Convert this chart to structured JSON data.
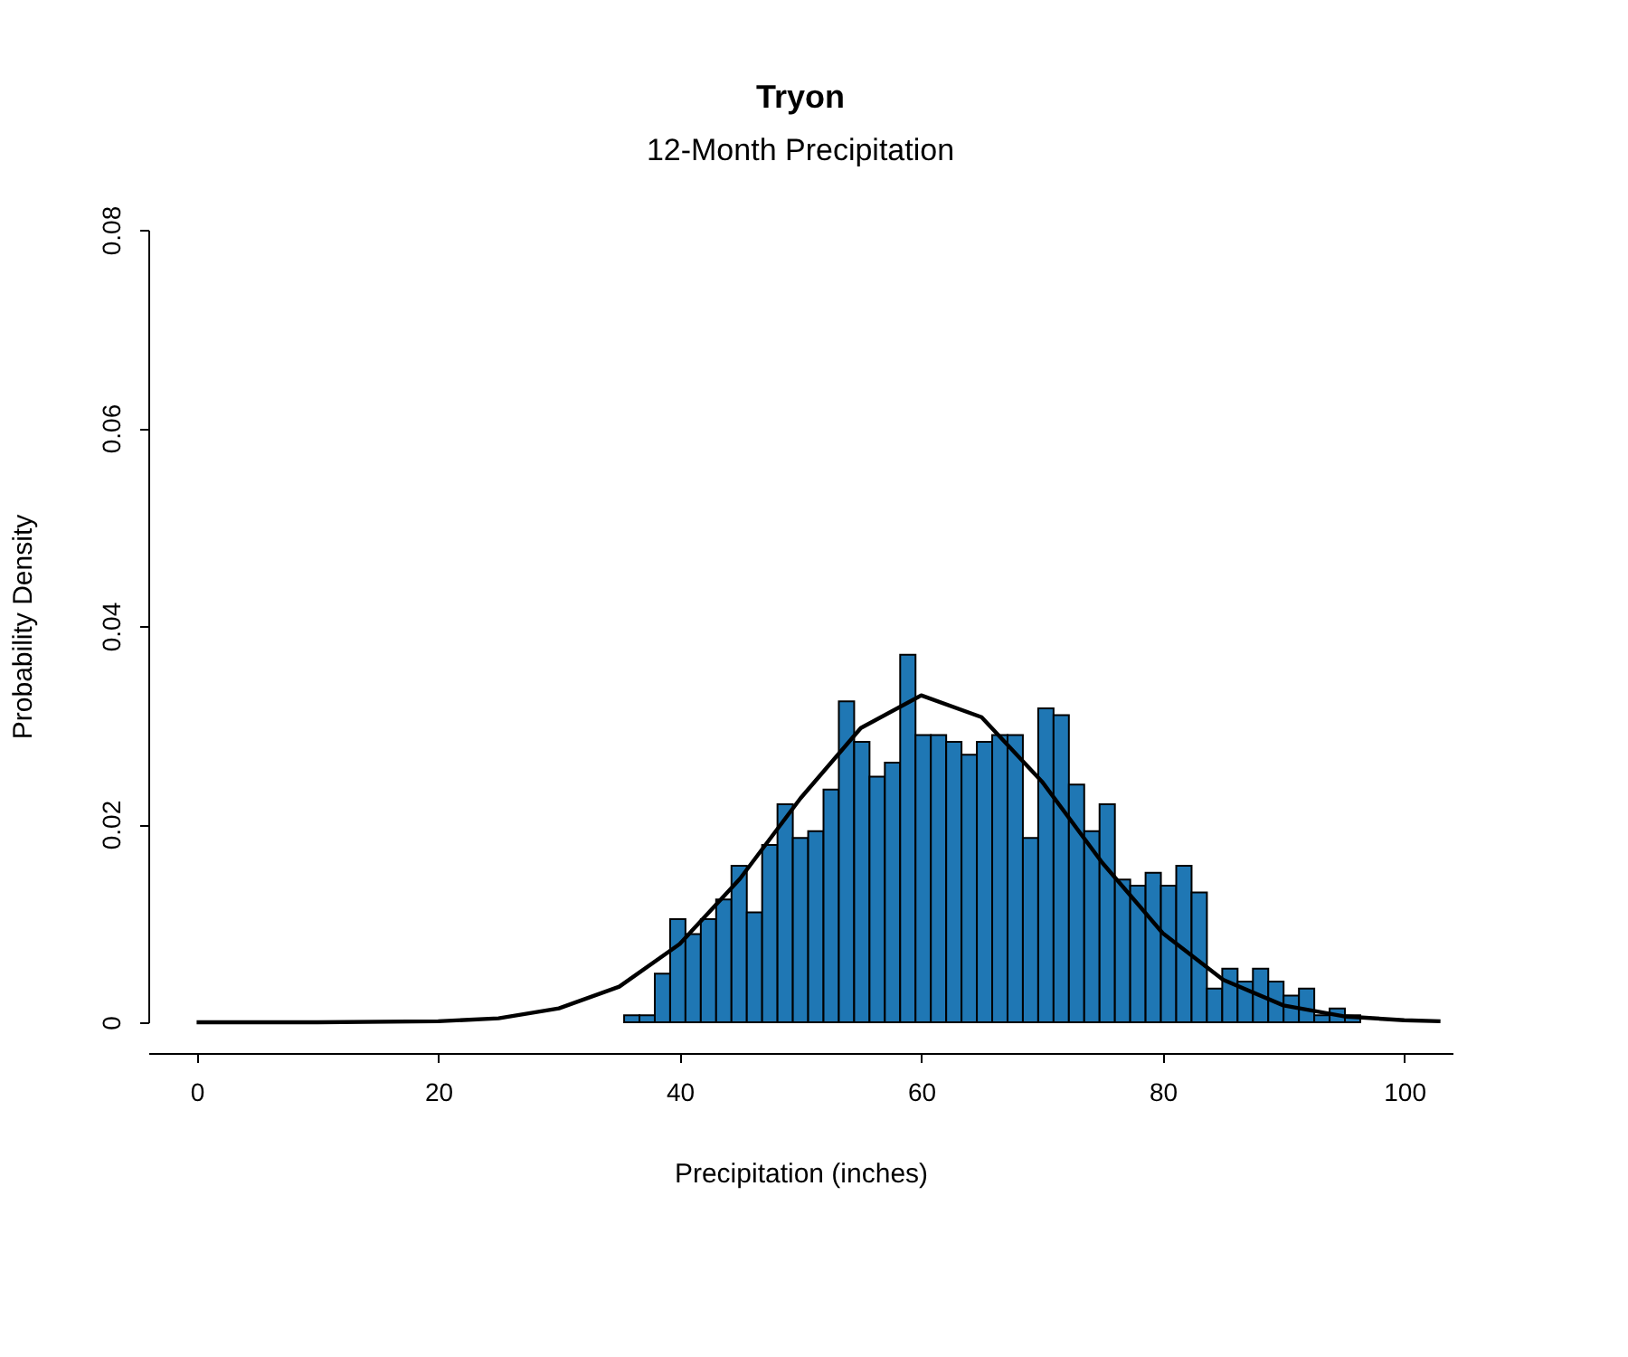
{
  "chart_data": {
    "type": "histogram",
    "title": "Tryon",
    "subtitle": "12-Month Precipitation",
    "xlabel": "Precipitation (inches)",
    "ylabel": "Probability Density",
    "xlim": [
      -4,
      104
    ],
    "xticks": [
      0,
      20,
      40,
      60,
      80,
      100
    ],
    "ylim": [
      0,
      0.08
    ],
    "yticks": [
      0,
      0.02,
      0.04,
      0.06,
      0.08
    ],
    "grid": false,
    "series": [
      {
        "type": "histogram",
        "color": "#1f77b4",
        "bins": [
          35.4,
          36.67,
          37.94,
          39.21,
          40.48,
          41.75,
          43.02,
          44.29,
          45.56,
          46.83,
          48.1,
          49.37,
          50.64,
          51.91,
          53.18,
          54.45,
          55.72,
          56.99,
          58.26,
          59.53,
          60.8,
          62.07,
          63.34,
          64.61,
          65.88,
          67.15,
          68.42,
          69.69,
          70.96,
          72.23,
          73.5,
          74.77,
          76.04,
          77.31,
          78.58,
          79.85,
          81.12,
          82.39,
          83.66,
          84.93,
          86.2,
          87.47,
          88.74,
          90.01,
          91.28,
          92.55,
          93.82,
          95.09,
          96.36
        ],
        "values": [
          0.0007,
          0.0007,
          0.0049,
          0.0104,
          0.0089,
          0.0104,
          0.0124,
          0.0158,
          0.0111,
          0.0179,
          0.022,
          0.0186,
          0.0193,
          0.0235,
          0.0324,
          0.0283,
          0.0248,
          0.0262,
          0.0371,
          0.029,
          0.029,
          0.0283,
          0.027,
          0.0283,
          0.029,
          0.029,
          0.0186,
          0.0317,
          0.031,
          0.024,
          0.0193,
          0.022,
          0.0144,
          0.0138,
          0.0151,
          0.0138,
          0.0158,
          0.0131,
          0.0034,
          0.0054,
          0.0041,
          0.0054,
          0.0041,
          0.0027,
          0.0034,
          0.0007,
          0.0014,
          0.0007
        ]
      },
      {
        "type": "line",
        "color": "#000000",
        "marker": "none",
        "line_style": "solid",
        "x": [
          0,
          10,
          20,
          25,
          30,
          35,
          40,
          45,
          50,
          55,
          60,
          65,
          70,
          75,
          80,
          85,
          90,
          95,
          100,
          103
        ],
        "values": [
          0,
          0,
          0.0001,
          0.0004,
          0.0014,
          0.0036,
          0.0079,
          0.0145,
          0.0226,
          0.0297,
          0.033,
          0.0308,
          0.0243,
          0.0161,
          0.009,
          0.0043,
          0.0017,
          0.0006,
          0.0002,
          0.0001
        ]
      }
    ]
  }
}
